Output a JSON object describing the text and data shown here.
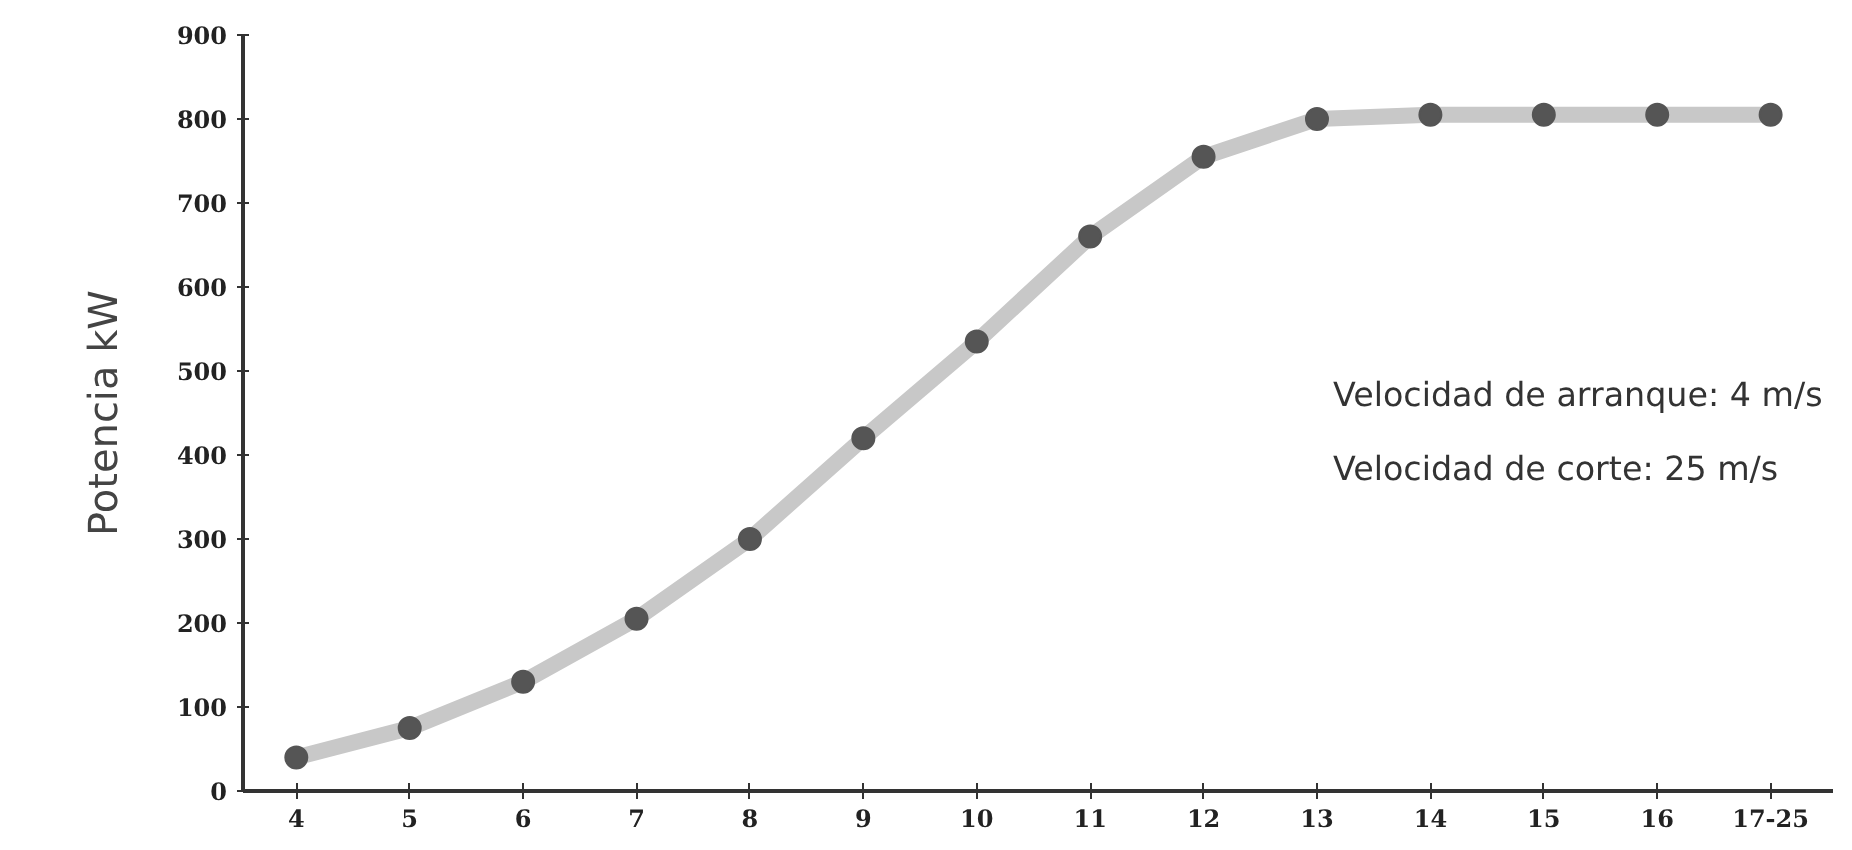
{
  "chart_data": {
    "type": "line",
    "ylabel": "Potencia kW",
    "categories": [
      "4",
      "5",
      "6",
      "7",
      "8",
      "9",
      "10",
      "11",
      "12",
      "13",
      "14",
      "15",
      "16",
      "17-25"
    ],
    "series": [
      {
        "color": "#555555",
        "values": [
          40,
          75,
          130,
          205,
          300,
          420,
          535,
          660,
          755,
          800,
          805,
          805,
          805,
          805
        ]
      }
    ],
    "ylim": [
      0,
      900
    ],
    "yticks": [
      0,
      100,
      200,
      300,
      400,
      500,
      600,
      700,
      800,
      900
    ],
    "marker": "circle",
    "line_style": "solid",
    "grid": false,
    "annotations": [
      "Velocidad de arranque: 4 m/s",
      "Velocidad de corte:  25 m/s"
    ]
  }
}
